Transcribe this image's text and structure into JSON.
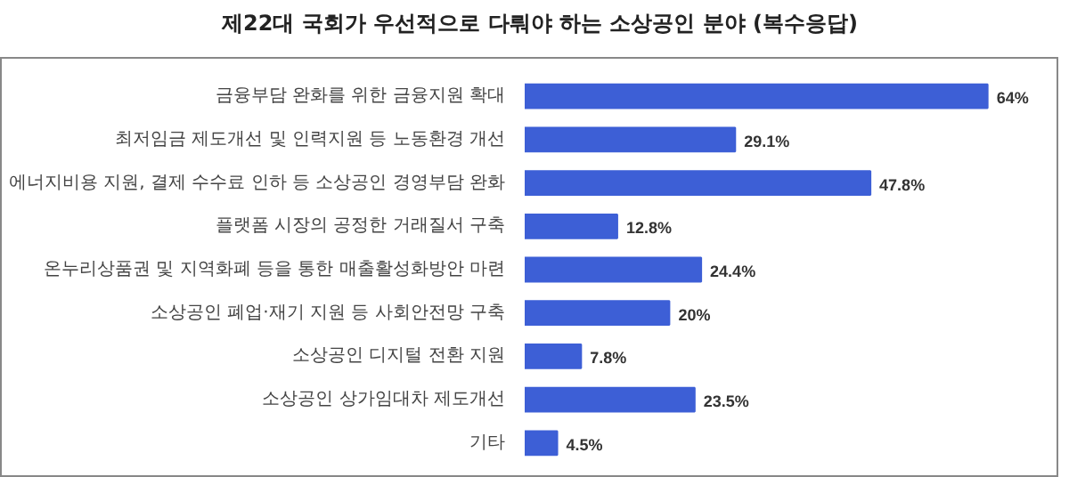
{
  "chart_data": {
    "type": "bar",
    "orientation": "horizontal",
    "title": "제22대 국회가 우선적으로 다뤄야 하는 소상공인 분야 (복수응답)",
    "categories": [
      "금융부담 완화를 위한 금융지원 확대",
      "최저임금 제도개선 및 인력지원 등 노동환경 개선",
      "에너지비용 지원, 결제 수수료 인하 등 소상공인 경영부담 완화",
      "플랫폼 시장의 공정한 거래질서 구축",
      "온누리상품권 및 지역화폐 등을 통한 매출활성화방안 마련",
      "소상공인 폐업·재기 지원 등 사회안전망 구축",
      "소상공인 디지털 전환 지원",
      "소상공인 상가임대차 제도개선",
      "기타"
    ],
    "values": [
      64,
      29.1,
      47.8,
      12.8,
      24.4,
      20,
      7.8,
      23.5,
      4.5
    ],
    "value_labels": [
      "64%",
      "29.1%",
      "47.8%",
      "12.8%",
      "24.4%",
      "20%",
      "7.8%",
      "23.5%",
      "4.5%"
    ],
    "color": "#3d5fd6",
    "grid": false
  }
}
